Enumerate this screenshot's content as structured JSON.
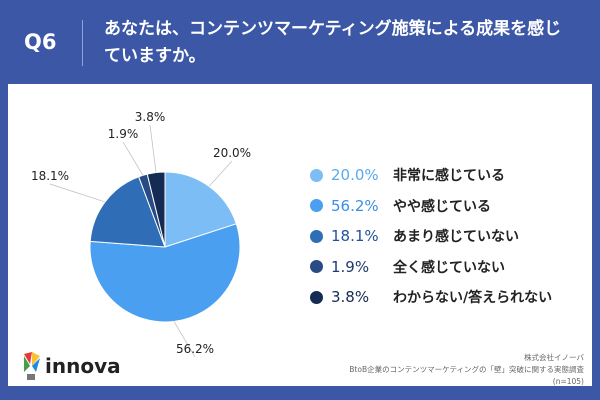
{
  "header": {
    "question": "Q6",
    "title": "あなたは、コンテンツマーケティング施策による成果を感じていますか。"
  },
  "chart_data": {
    "type": "pie",
    "start": "top",
    "direction": "clockwise",
    "categories": [
      "非常に感じている",
      "やや感じている",
      "あまり感じていない",
      "全く感じていない",
      "わからない/答えられない"
    ],
    "values": [
      20.0,
      56.2,
      18.1,
      1.9,
      3.8
    ],
    "labels": [
      "20.0%",
      "56.2%",
      "18.1%",
      "1.9%",
      "3.8%"
    ],
    "colors": [
      "#7dbdf5",
      "#4a9ff0",
      "#2f6eb6",
      "#284b86",
      "#152b53"
    ],
    "pct_colors": [
      "#5aa9f0",
      "#3a8fe6",
      "#24509a",
      "#1f3a6e",
      "#152b53"
    ],
    "legend_position": "right"
  },
  "footer": {
    "company": "株式会社イノーバ",
    "survey": "BtoB企業のコンテンツマーケティングの「壁」突破に関する実態調査",
    "n": "(n=105)"
  },
  "logo": {
    "text": "innova"
  }
}
